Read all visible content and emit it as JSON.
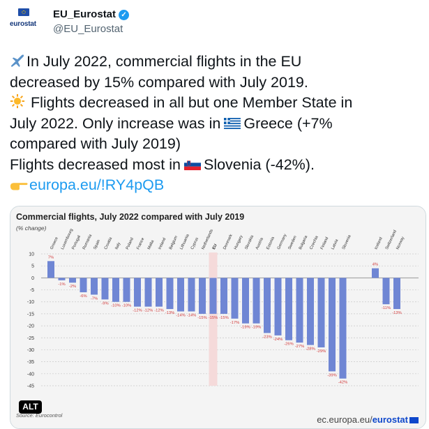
{
  "account": {
    "avatar_text": "eurostat",
    "display_name": "EU_Eurostat",
    "verified_icon": "verified-badge-icon",
    "handle": "@EU_Eurostat"
  },
  "tweet": {
    "line1": "In July 2022, commercial flights in the EU",
    "line2": "decreased by 15% compared with July 2019.",
    "line3": " Flights decreased in all but one Member State in",
    "line4a": "July 2022. Only increase was in",
    "line4b": "Greece (+7%",
    "line5": "compared with July 2019)",
    "line6a": "Flights decreased most in",
    "line6b": "Slovenia (-42%).",
    "link": "europa.eu/!RY4pQB"
  },
  "media": {
    "alt_label": "ALT",
    "source_text": "Source: Eurocontrol",
    "logo_prefix": "ec.europa.eu/",
    "logo_brand": "eurostat"
  },
  "colors": {
    "bar": "#6f86d4",
    "highlight": "#f5dada",
    "accent": "#1d9bf0"
  },
  "chart_data": {
    "type": "bar",
    "title": "Commercial flights, July 2022 compared with July 2019",
    "subtitle": "(% change)",
    "ylim": [
      -45,
      10
    ],
    "yticks": [
      10,
      5,
      0,
      -5,
      -10,
      -15,
      -20,
      -25,
      -30,
      -35,
      -40,
      -45
    ],
    "grid": true,
    "categories": [
      "Greece",
      "Luxembourg",
      "Portugal",
      "Romania",
      "Spain",
      "Croatia",
      "Italy",
      "Poland",
      "France",
      "Malta",
      "Ireland",
      "Belgium",
      "Lithuania",
      "Cyprus",
      "Netherlands",
      "EU",
      "Denmark",
      "Hungary",
      "Slovakia",
      "Austria",
      "Estonia",
      "Germany",
      "Sweden",
      "Bulgaria",
      "Czechia",
      "Finland",
      "Latvia",
      "Slovenia",
      "Iceland",
      "Switzerland",
      "Norway"
    ],
    "values": [
      7,
      -1,
      -2,
      -6,
      -7,
      -9,
      -10,
      -10,
      -12,
      -12,
      -12,
      -13,
      -14,
      -14,
      -15,
      -15,
      -15,
      -17,
      -19,
      -19,
      -23,
      -24,
      -26,
      -27,
      -28,
      -29,
      -39,
      -42,
      4,
      -11,
      -13
    ],
    "data_labels": [
      "7%",
      "-1%",
      "-2%",
      "-6%",
      "-7%",
      "-9%",
      "-10%",
      "-10%",
      "-12%",
      "-12%",
      "-12%",
      "-13%",
      "-14%",
      "-14%",
      "-15%",
      "-15%",
      "-15%",
      "-17%",
      "-19%",
      "-19%",
      "-23%",
      "-24%",
      "-26%",
      "-27%",
      "-28%",
      "-29%",
      "-39%",
      "-42%",
      "4%",
      "-11%",
      "-13%"
    ],
    "highlight": "EU"
  }
}
